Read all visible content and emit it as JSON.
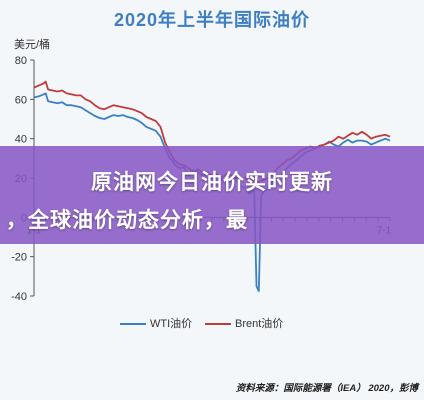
{
  "chart_data": {
    "type": "line",
    "title": "2020年上半年国际油价",
    "ylabel": "美元/桶",
    "ylim": [
      -40,
      80
    ],
    "yticks": [
      80,
      60,
      40,
      20,
      0,
      -20,
      -40
    ],
    "xticks": [
      "1-1",
      "7-1"
    ],
    "grid": false,
    "legend": "bottom",
    "series": [
      {
        "name": "WTI油价",
        "color": "#3b7fc4",
        "points": [
          [
            0,
            61
          ],
          [
            2,
            61.5
          ],
          [
            4,
            62.5
          ],
          [
            5,
            63
          ],
          [
            6,
            59
          ],
          [
            8,
            58.5
          ],
          [
            10,
            58
          ],
          [
            12,
            58.5
          ],
          [
            14,
            57
          ],
          [
            16,
            57
          ],
          [
            18,
            56.5
          ],
          [
            20,
            56
          ],
          [
            22,
            54.5
          ],
          [
            24,
            53
          ],
          [
            26,
            51.5
          ],
          [
            28,
            50.5
          ],
          [
            30,
            50
          ],
          [
            32,
            51
          ],
          [
            34,
            52
          ],
          [
            36,
            51.5
          ],
          [
            38,
            52
          ],
          [
            40,
            51
          ],
          [
            42,
            50.5
          ],
          [
            44,
            49.5
          ],
          [
            46,
            48
          ],
          [
            48,
            46
          ],
          [
            50,
            45
          ],
          [
            52,
            44
          ],
          [
            54,
            41
          ],
          [
            56,
            35
          ],
          [
            58,
            30
          ],
          [
            59,
            29
          ],
          [
            60,
            27
          ],
          [
            62,
            25
          ],
          [
            64,
            25.5
          ],
          [
            66,
            21
          ],
          [
            68,
            24
          ],
          [
            70,
            23
          ],
          [
            72,
            21
          ],
          [
            74,
            22.5
          ],
          [
            76,
            20
          ],
          [
            78,
            21
          ],
          [
            80,
            19
          ],
          [
            82,
            18.5
          ],
          [
            84,
            18
          ],
          [
            86,
            19.5
          ],
          [
            88,
            16
          ],
          [
            90,
            15
          ],
          [
            92,
            12
          ],
          [
            94,
            14
          ],
          [
            95,
            -35
          ],
          [
            96,
            -37.5
          ],
          [
            97,
            11
          ],
          [
            98,
            13
          ],
          [
            100,
            15
          ],
          [
            102,
            18
          ],
          [
            104,
            20
          ],
          [
            106,
            22
          ],
          [
            108,
            25
          ],
          [
            110,
            27
          ],
          [
            112,
            29
          ],
          [
            114,
            31
          ],
          [
            116,
            33
          ],
          [
            118,
            34
          ],
          [
            120,
            35
          ],
          [
            122,
            36
          ],
          [
            124,
            37
          ],
          [
            126,
            38.5
          ],
          [
            128,
            37
          ],
          [
            130,
            36
          ],
          [
            132,
            38
          ],
          [
            134,
            39.5
          ],
          [
            136,
            38
          ],
          [
            138,
            39
          ],
          [
            140,
            39
          ],
          [
            142,
            38.5
          ],
          [
            144,
            37
          ],
          [
            146,
            38
          ],
          [
            148,
            39
          ],
          [
            150,
            40
          ],
          [
            152,
            39
          ]
        ]
      },
      {
        "name": "Brent油价",
        "color": "#c03b3b",
        "points": [
          [
            0,
            66
          ],
          [
            2,
            67
          ],
          [
            4,
            68
          ],
          [
            5,
            69
          ],
          [
            6,
            65
          ],
          [
            8,
            64.5
          ],
          [
            10,
            64
          ],
          [
            12,
            64.5
          ],
          [
            14,
            63
          ],
          [
            16,
            62.5
          ],
          [
            18,
            62
          ],
          [
            20,
            62
          ],
          [
            22,
            60
          ],
          [
            24,
            59
          ],
          [
            26,
            57
          ],
          [
            28,
            55.5
          ],
          [
            30,
            55
          ],
          [
            32,
            56
          ],
          [
            34,
            57
          ],
          [
            36,
            56.5
          ],
          [
            38,
            56
          ],
          [
            40,
            55.5
          ],
          [
            42,
            55
          ],
          [
            44,
            54
          ],
          [
            46,
            53
          ],
          [
            48,
            51
          ],
          [
            50,
            50
          ],
          [
            52,
            49
          ],
          [
            54,
            46
          ],
          [
            56,
            38
          ],
          [
            58,
            33
          ],
          [
            59,
            31
          ],
          [
            60,
            29
          ],
          [
            62,
            27
          ],
          [
            64,
            26.5
          ],
          [
            66,
            25
          ],
          [
            68,
            23
          ],
          [
            70,
            24.5
          ],
          [
            72,
            22.5
          ],
          [
            74,
            23
          ],
          [
            76,
            21
          ],
          [
            78,
            22
          ],
          [
            80,
            20
          ],
          [
            82,
            22
          ],
          [
            84,
            21.5
          ],
          [
            86,
            20
          ],
          [
            88,
            19.5
          ],
          [
            90,
            20
          ],
          [
            92,
            19
          ],
          [
            94,
            18
          ],
          [
            96,
            18
          ],
          [
            98,
            19
          ],
          [
            100,
            20
          ],
          [
            102,
            22
          ],
          [
            104,
            25
          ],
          [
            106,
            27
          ],
          [
            108,
            29
          ],
          [
            110,
            30
          ],
          [
            112,
            32
          ],
          [
            114,
            34
          ],
          [
            116,
            35
          ],
          [
            118,
            36
          ],
          [
            120,
            35
          ],
          [
            122,
            36.5
          ],
          [
            124,
            37
          ],
          [
            126,
            38
          ],
          [
            128,
            39
          ],
          [
            130,
            41
          ],
          [
            132,
            40
          ],
          [
            134,
            41.5
          ],
          [
            136,
            43
          ],
          [
            138,
            42
          ],
          [
            140,
            43.5
          ],
          [
            142,
            42
          ],
          [
            144,
            40
          ],
          [
            146,
            41
          ],
          [
            148,
            41.5
          ],
          [
            150,
            42
          ],
          [
            152,
            41
          ]
        ]
      }
    ]
  },
  "banner": {
    "line1": "原油网今日油价实时更新",
    "line2": "，全球油价动态分析，最"
  },
  "source": "资料来源：国际能源署（IEA） 2020，彭博"
}
